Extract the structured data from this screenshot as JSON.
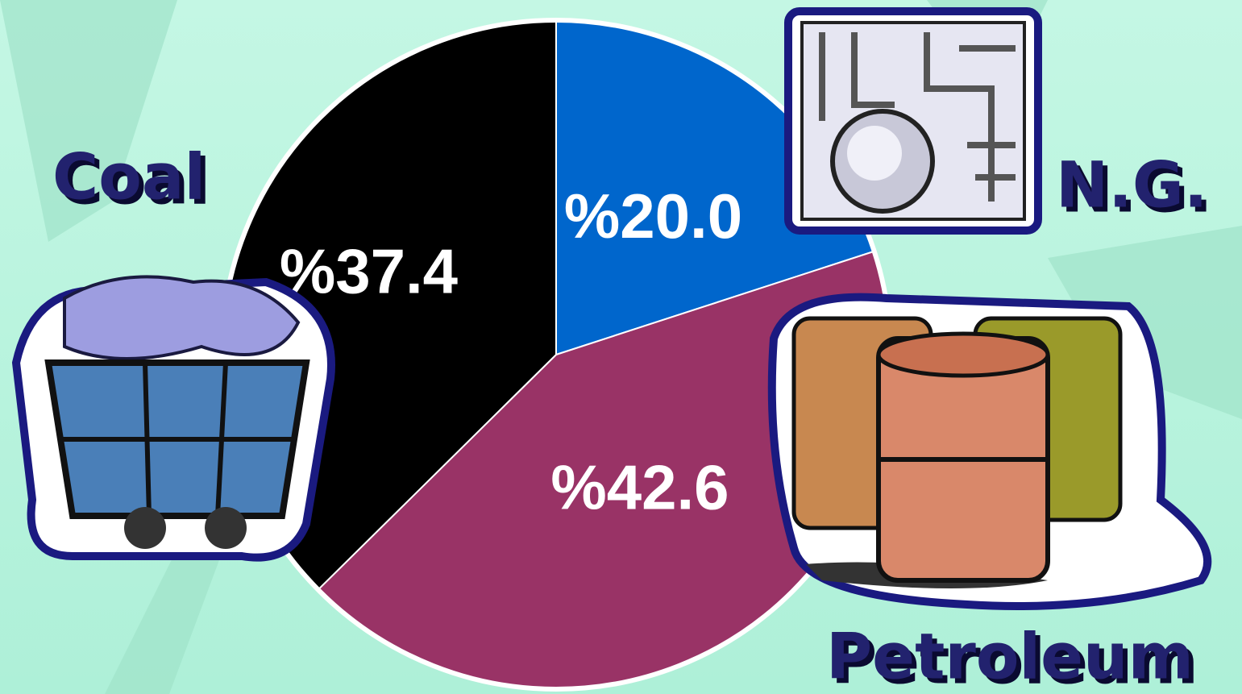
{
  "chart_data": {
    "type": "pie",
    "categories": [
      "N.G.",
      "Petroleum",
      "Coal"
    ],
    "values": [
      20.0,
      42.6,
      37.4
    ],
    "value_labels": [
      "%20.0",
      "%42.6",
      "%37.4"
    ],
    "colors": [
      "#0066cc",
      "#993366",
      "#000000"
    ]
  }
}
